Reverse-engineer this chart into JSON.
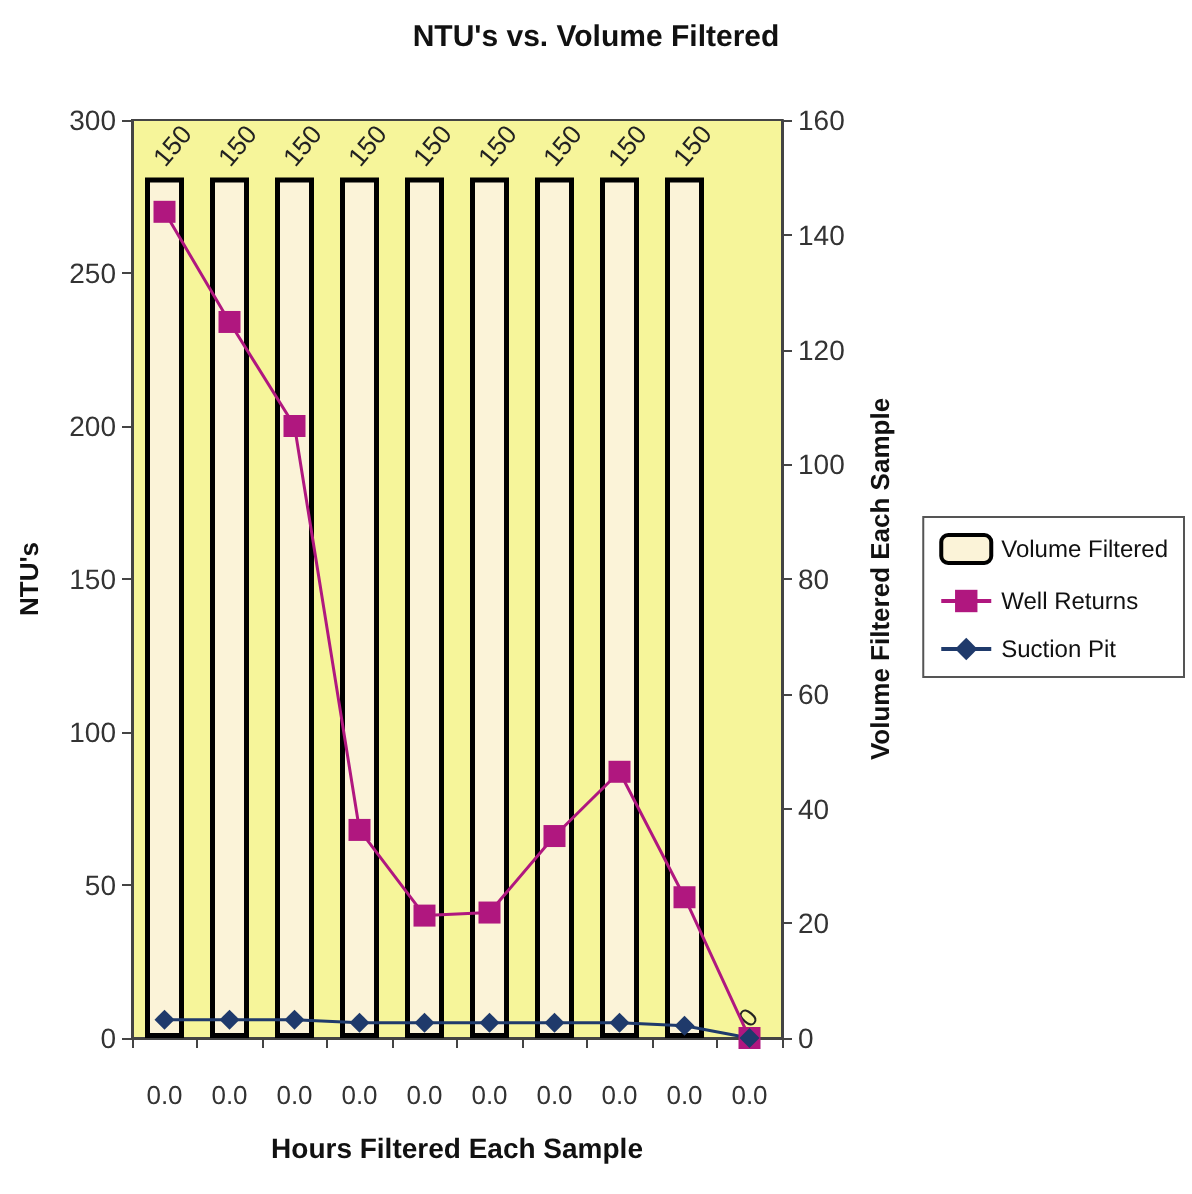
{
  "chart_data": {
    "type": "bar",
    "title": "NTU's vs. Volume Filtered",
    "xlabel": "Hours Filtered Each Sample",
    "ylabel": "NTU's",
    "y2label": "Volume Filtered Each Sample",
    "categories": [
      "0.0",
      "0.0",
      "0.0",
      "0.0",
      "0.0",
      "0.0",
      "0.0",
      "0.0",
      "0.0",
      "0.0"
    ],
    "series": [
      {
        "name": "Volume Filtered",
        "axis": "y2",
        "color": "#fbf3d8",
        "values": [
          150,
          150,
          150,
          150,
          150,
          150,
          150,
          150,
          150,
          0
        ],
        "value_labels": [
          "150",
          "150",
          "150",
          "150",
          "150",
          "150",
          "150",
          "150",
          "150",
          "0"
        ]
      },
      {
        "name": "Well Returns",
        "type": "line",
        "marker": "square",
        "color": "#b0177f",
        "values": [
          270,
          234,
          200,
          68,
          40,
          41,
          66,
          87,
          46,
          0
        ]
      },
      {
        "name": "Suction Pit",
        "type": "line",
        "marker": "diamond",
        "color": "#1f3a6b",
        "values": [
          6,
          6,
          6,
          5,
          5,
          5,
          5,
          5,
          4,
          0
        ]
      }
    ],
    "ylim": [
      0,
      300
    ],
    "yticks": [
      0,
      50,
      100,
      150,
      200,
      250,
      300
    ],
    "y2lim": [
      0,
      160
    ],
    "y2ticks": [
      0,
      20,
      40,
      60,
      80,
      100,
      120,
      140,
      160
    ],
    "legend": "right"
  }
}
